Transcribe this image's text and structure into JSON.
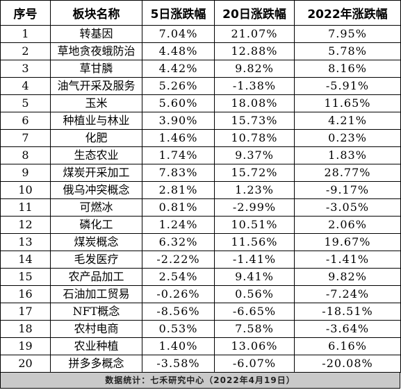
{
  "table": {
    "headers": [
      "序号",
      "板块名称",
      "5日涨跌幅",
      "20日涨跌幅",
      "2022年涨跌幅"
    ],
    "rows": [
      [
        "1",
        "转基因",
        "7.04%",
        "21.07%",
        "7.95%"
      ],
      [
        "2",
        "草地贪夜蛾防治",
        "4.48%",
        "12.88%",
        "5.78%"
      ],
      [
        "3",
        "草甘膦",
        "4.42%",
        "9.82%",
        "8.16%"
      ],
      [
        "4",
        "油气开采及服务",
        "5.26%",
        "-1.38%",
        "-5.91%"
      ],
      [
        "5",
        "玉米",
        "5.60%",
        "18.08%",
        "11.65%"
      ],
      [
        "6",
        "种植业与林业",
        "3.90%",
        "15.73%",
        "4.21%"
      ],
      [
        "7",
        "化肥",
        "1.46%",
        "10.78%",
        "0.23%"
      ],
      [
        "8",
        "生态农业",
        "1.74%",
        "9.37%",
        "1.83%"
      ],
      [
        "9",
        "煤炭开采加工",
        "7.83%",
        "15.72%",
        "28.77%"
      ],
      [
        "10",
        "俄乌冲突概念",
        "2.81%",
        "1.23%",
        "-9.17%"
      ],
      [
        "11",
        "可燃冰",
        "0.81%",
        "-2.99%",
        "-3.05%"
      ],
      [
        "12",
        "磷化工",
        "1.24%",
        "10.51%",
        "2.06%"
      ],
      [
        "13",
        "煤炭概念",
        "6.32%",
        "11.56%",
        "19.67%"
      ],
      [
        "14",
        "毛发医疗",
        "-2.22%",
        "-1.41%",
        "-1.41%"
      ],
      [
        "15",
        "农产品加工",
        "2.54%",
        "9.41%",
        "9.82%"
      ],
      [
        "16",
        "石油加工贸易",
        "-0.26%",
        "0.56%",
        "-7.24%"
      ],
      [
        "17",
        "NFT概念",
        "-8.56%",
        "-6.65%",
        "-18.51%"
      ],
      [
        "18",
        "农村电商",
        "0.53%",
        "7.58%",
        "-3.64%"
      ],
      [
        "19",
        "农业种植",
        "1.40%",
        "13.06%",
        "6.16%"
      ],
      [
        "20",
        "拼多多概念",
        "-3.58%",
        "-6.07%",
        "-20.08%"
      ]
    ]
  },
  "footer": {
    "text": "数据统计：七禾研究中心（2022年4月19日）"
  }
}
